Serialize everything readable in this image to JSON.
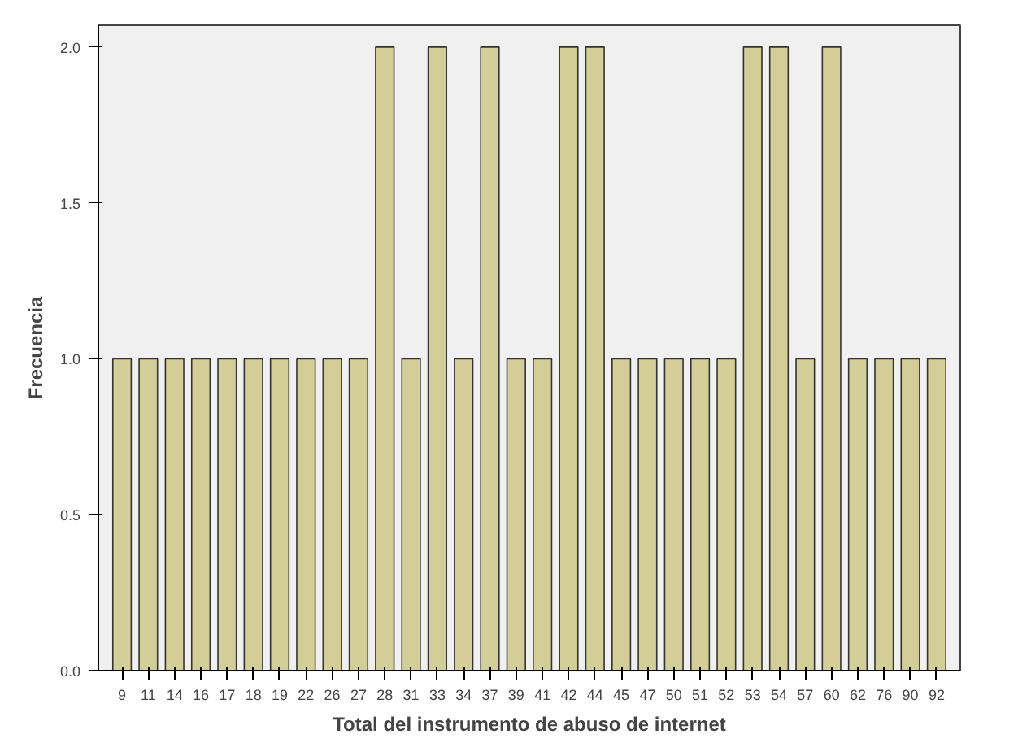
{
  "chart_data": {
    "type": "bar",
    "xlabel": "Total del instrumento de abuso de internet",
    "ylabel": "Frecuencia",
    "categories": [
      "9",
      "11",
      "14",
      "16",
      "17",
      "18",
      "19",
      "22",
      "26",
      "27",
      "28",
      "31",
      "33",
      "34",
      "37",
      "39",
      "41",
      "42",
      "44",
      "45",
      "47",
      "50",
      "51",
      "52",
      "53",
      "54",
      "57",
      "60",
      "62",
      "76",
      "90",
      "92"
    ],
    "values": [
      1,
      1,
      1,
      1,
      1,
      1,
      1,
      1,
      1,
      1,
      2,
      1,
      2,
      1,
      2,
      1,
      1,
      2,
      2,
      1,
      1,
      1,
      1,
      1,
      2,
      2,
      1,
      2,
      1,
      1,
      1,
      1
    ],
    "color": "#d3ce97",
    "ylim": [
      0,
      2.07
    ],
    "yticks": [
      {
        "value": 0,
        "label": "0.0"
      },
      {
        "value": 0.5,
        "label": "0.5"
      },
      {
        "value": 1,
        "label": "1.0"
      },
      {
        "value": 1.5,
        "label": "1.5"
      },
      {
        "value": 2,
        "label": "2.0"
      }
    ],
    "grid": false
  }
}
